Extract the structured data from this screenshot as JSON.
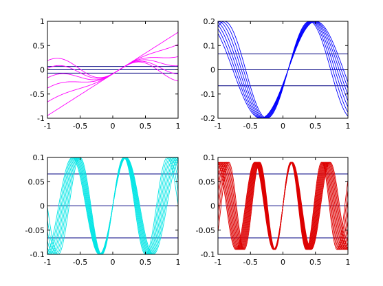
{
  "figure": {
    "background": "#ffffff",
    "axis_color": "#000000"
  },
  "chart_data": [
    {
      "type": "line",
      "title": "",
      "xlabel": "",
      "ylabel": "",
      "xlim": [
        -1,
        1
      ],
      "ylim": [
        -1,
        1
      ],
      "xticks": [
        -1,
        -0.5,
        0,
        0.5,
        1
      ],
      "yticks": [
        -1,
        -0.5,
        0,
        0.5,
        1
      ],
      "xtick_labels": [
        "-1",
        "-0.5",
        "0",
        "0.5",
        "1"
      ],
      "ytick_labels": [
        "-1",
        "-0.5",
        "0",
        "0.5",
        "1"
      ],
      "grid": false,
      "legend": "none",
      "series_color": "#ff00ff",
      "family": {
        "count": 6,
        "form": "linear-combination",
        "x_shift": 0.1,
        "sine_amplitude": 0.18,
        "sine_frequency": 1.6,
        "slope": [
          0.86,
          0.63,
          0.4,
          0.23,
          0.07,
          -0.06
        ],
        "sine_weight": [
          0.0,
          0.25,
          0.5,
          0.7,
          0.85,
          1.0
        ]
      },
      "hlines": {
        "values": [
          -0.07,
          0,
          0.07
        ],
        "color": "#000080"
      }
    },
    {
      "type": "line",
      "title": "",
      "xlabel": "",
      "ylabel": "",
      "xlim": [
        -1,
        1
      ],
      "ylim": [
        -0.2,
        0.2
      ],
      "xticks": [
        -1,
        -0.5,
        0,
        0.5,
        1
      ],
      "yticks": [
        -0.2,
        -0.1,
        0,
        0.1,
        0.2
      ],
      "xtick_labels": [
        "-1",
        "-0.5",
        "0",
        "0.5",
        "1"
      ],
      "ytick_labels": [
        "-0.2",
        "-0.1",
        "0",
        "0.1",
        "0.2"
      ],
      "grid": false,
      "legend": "none",
      "series_color": "#0000ff",
      "family": {
        "count": 7,
        "form": "expanding-sine",
        "center": 0.08,
        "amplitude": 0.2,
        "frequency": 4.8,
        "stretch": [
          0.0,
          0.05,
          0.1,
          0.15,
          0.2,
          0.25,
          0.3
        ]
      },
      "hlines": {
        "values": [
          -0.066,
          0,
          0.066
        ],
        "color": "#000080"
      }
    },
    {
      "type": "line",
      "title": "",
      "xlabel": "",
      "ylabel": "",
      "xlim": [
        -1,
        1
      ],
      "ylim": [
        -0.1,
        0.1
      ],
      "xticks": [
        -1,
        -0.5,
        0,
        0.5,
        1
      ],
      "yticks": [
        -0.1,
        -0.05,
        0,
        0.05,
        0.1
      ],
      "xtick_labels": [
        "-1",
        "-0.5",
        "0",
        "0.5",
        "1"
      ],
      "ytick_labels": [
        "-0.1",
        "-0.05",
        "0",
        "0.05",
        "0.1"
      ],
      "grid": false,
      "legend": "none",
      "series_color": "#00e5e5",
      "family": {
        "count": 9,
        "form": "expanding-sine",
        "center": 0.0,
        "amplitude": 0.1,
        "frequency": 9.4,
        "stretch": [
          0.0,
          0.03,
          0.06,
          0.09,
          0.12,
          0.15,
          0.18,
          0.21,
          0.24
        ]
      },
      "hlines": {
        "values": [
          -0.066,
          0,
          0.066
        ],
        "color": "#000080"
      }
    },
    {
      "type": "line",
      "title": "",
      "xlabel": "",
      "ylabel": "",
      "xlim": [
        -1,
        1
      ],
      "ylim": [
        -0.1,
        0.1
      ],
      "xticks": [
        -1,
        -0.5,
        0,
        0.5,
        1
      ],
      "yticks": [
        -0.1,
        -0.05,
        0,
        0.05,
        0.1
      ],
      "xtick_labels": [
        "-1",
        "-0.5",
        "0",
        "0.5",
        "1"
      ],
      "ytick_labels": [
        "-0.1",
        "-0.05",
        "0",
        "0.05",
        "0.1"
      ],
      "grid": false,
      "legend": "none",
      "series_color": "#dd0000",
      "family": {
        "count": 12,
        "form": "expanding-sine",
        "center": 0.0,
        "amplitude": 0.09,
        "frequency": 13.2,
        "stretch": [
          0.0,
          0.02,
          0.04,
          0.06,
          0.08,
          0.1,
          0.12,
          0.14,
          0.16,
          0.18,
          0.2,
          0.22
        ]
      },
      "hlines": {
        "values": [
          -0.066,
          0,
          0.066
        ],
        "color": "#000080"
      }
    }
  ]
}
